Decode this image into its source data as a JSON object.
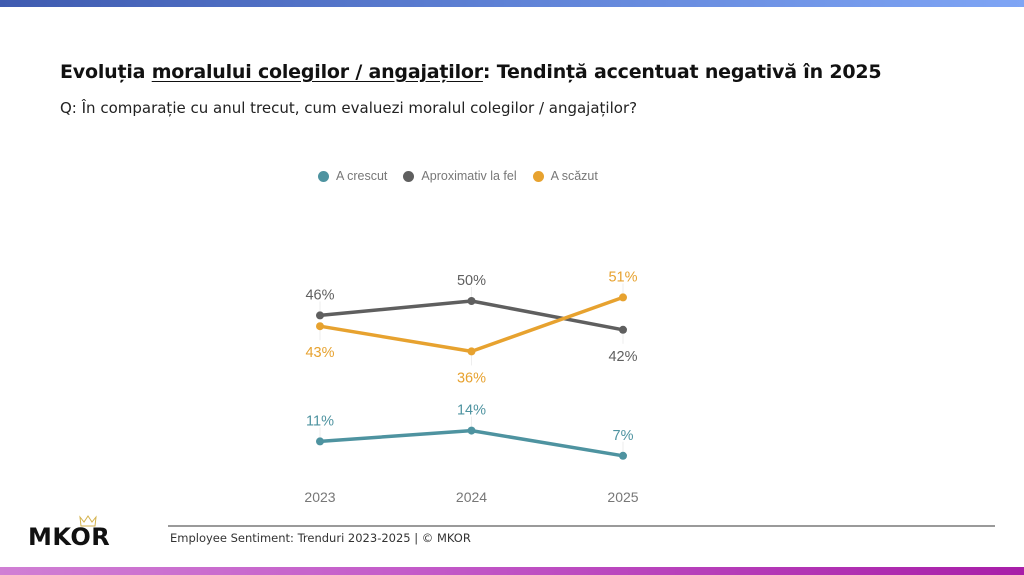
{
  "header": {
    "title_part1": "Evoluția ",
    "title_underlined": "moralului colegilor / angajaților",
    "title_part2": ": Tendință accentuat negativă în 2025",
    "subtitle": "Q: În comparație cu anul trecut, cum evaluezi moralul colegilor / angajaților?"
  },
  "colors": {
    "top_bar": "#5f82d6",
    "bottom_bar": "#b53cb5",
    "crescut": "#4e93a0",
    "fel": "#5f5f5f",
    "scazut": "#e7a22f"
  },
  "chart_data": {
    "type": "line",
    "title": "",
    "xlabel": "",
    "ylabel": "",
    "x": [
      "2023",
      "2024",
      "2025"
    ],
    "legend_position": "top-center",
    "grid": false,
    "series": [
      {
        "name": "A crescut",
        "color": "#4e93a0",
        "values": [
          11,
          14,
          7
        ],
        "labels": [
          "11%",
          "14%",
          "7%"
        ],
        "label_pos": [
          "above",
          "above",
          "above"
        ]
      },
      {
        "name": "Aproximativ la fel",
        "color": "#5f5f5f",
        "values": [
          46,
          50,
          42
        ],
        "labels": [
          "46%",
          "50%",
          "42%"
        ],
        "label_pos": [
          "above",
          "above",
          "below"
        ]
      },
      {
        "name": "A scăzut",
        "color": "#e7a22f",
        "values": [
          43,
          36,
          51
        ],
        "labels": [
          "43%",
          "36%",
          "51%"
        ],
        "label_pos": [
          "below",
          "below",
          "above"
        ]
      }
    ]
  },
  "footer": {
    "logo": "MKOR",
    "text": "Employee Sentiment: Trenduri 2023-2025 | © MKOR"
  }
}
